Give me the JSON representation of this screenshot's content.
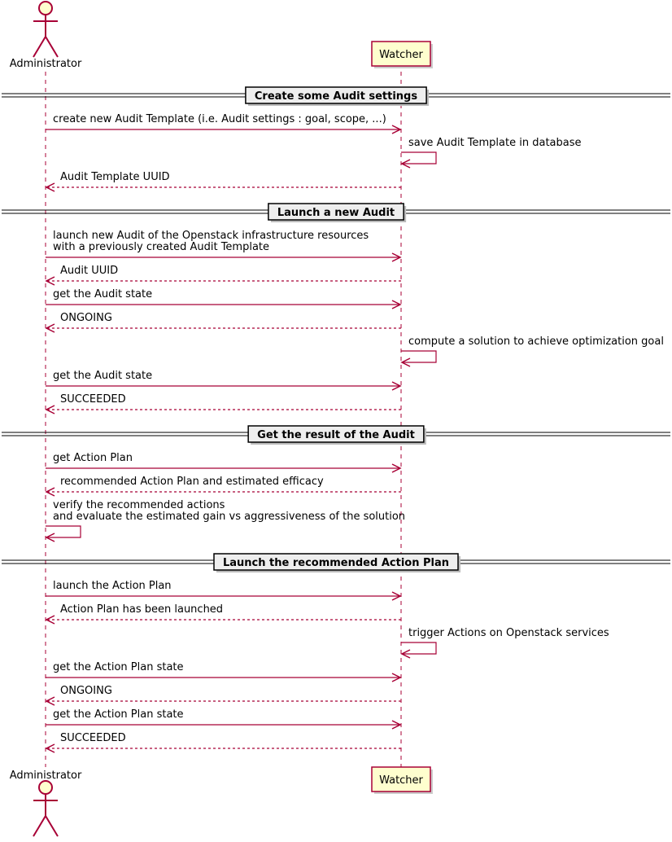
{
  "participants": [
    {
      "name": "Administrator",
      "kind": "actor"
    },
    {
      "name": "Watcher",
      "kind": "box"
    }
  ],
  "steps": [
    {
      "divider": "Create some Audit settings"
    },
    {
      "from": "Administrator",
      "to": "Watcher",
      "lines": [
        "create new Audit Template (i.e. Audit settings : goal, scope, ...)"
      ],
      "dashed": false
    },
    {
      "from": "Watcher",
      "to": "Watcher",
      "lines": [
        "save Audit Template in database"
      ],
      "dashed": false
    },
    {
      "from": "Watcher",
      "to": "Administrator",
      "lines": [
        "Audit Template UUID"
      ],
      "dashed": true
    },
    {
      "divider": "Launch a new Audit"
    },
    {
      "from": "Administrator",
      "to": "Watcher",
      "lines": [
        "launch new Audit of the Openstack infrastructure resources",
        "with a previously created Audit Template"
      ],
      "dashed": false
    },
    {
      "from": "Watcher",
      "to": "Administrator",
      "lines": [
        "Audit UUID"
      ],
      "dashed": true
    },
    {
      "from": "Administrator",
      "to": "Watcher",
      "lines": [
        "get the Audit state"
      ],
      "dashed": false
    },
    {
      "from": "Watcher",
      "to": "Administrator",
      "lines": [
        "ONGOING"
      ],
      "dashed": true
    },
    {
      "from": "Watcher",
      "to": "Watcher",
      "lines": [
        "compute a solution to achieve optimization goal"
      ],
      "dashed": false
    },
    {
      "from": "Administrator",
      "to": "Watcher",
      "lines": [
        "get the Audit state"
      ],
      "dashed": false
    },
    {
      "from": "Watcher",
      "to": "Administrator",
      "lines": [
        "SUCCEEDED"
      ],
      "dashed": true
    },
    {
      "divider": "Get the result of the Audit"
    },
    {
      "from": "Administrator",
      "to": "Watcher",
      "lines": [
        "get Action Plan"
      ],
      "dashed": false
    },
    {
      "from": "Watcher",
      "to": "Administrator",
      "lines": [
        "recommended Action Plan and estimated efficacy"
      ],
      "dashed": true
    },
    {
      "from": "Administrator",
      "to": "Administrator",
      "lines": [
        "verify the recommended actions",
        "and evaluate the estimated gain vs aggressiveness of the solution"
      ],
      "dashed": false
    },
    {
      "divider": "Launch the recommended Action Plan"
    },
    {
      "from": "Administrator",
      "to": "Watcher",
      "lines": [
        "launch the Action Plan"
      ],
      "dashed": false
    },
    {
      "from": "Watcher",
      "to": "Administrator",
      "lines": [
        "Action Plan has been launched"
      ],
      "dashed": true
    },
    {
      "from": "Watcher",
      "to": "Watcher",
      "lines": [
        "trigger Actions on Openstack services"
      ],
      "dashed": false
    },
    {
      "from": "Administrator",
      "to": "Watcher",
      "lines": [
        "get the Action Plan state"
      ],
      "dashed": false
    },
    {
      "from": "Watcher",
      "to": "Administrator",
      "lines": [
        "ONGOING"
      ],
      "dashed": true
    },
    {
      "from": "Administrator",
      "to": "Watcher",
      "lines": [
        "get the Action Plan state"
      ],
      "dashed": false
    },
    {
      "from": "Watcher",
      "to": "Administrator",
      "lines": [
        "SUCCEEDED"
      ],
      "dashed": true
    }
  ]
}
